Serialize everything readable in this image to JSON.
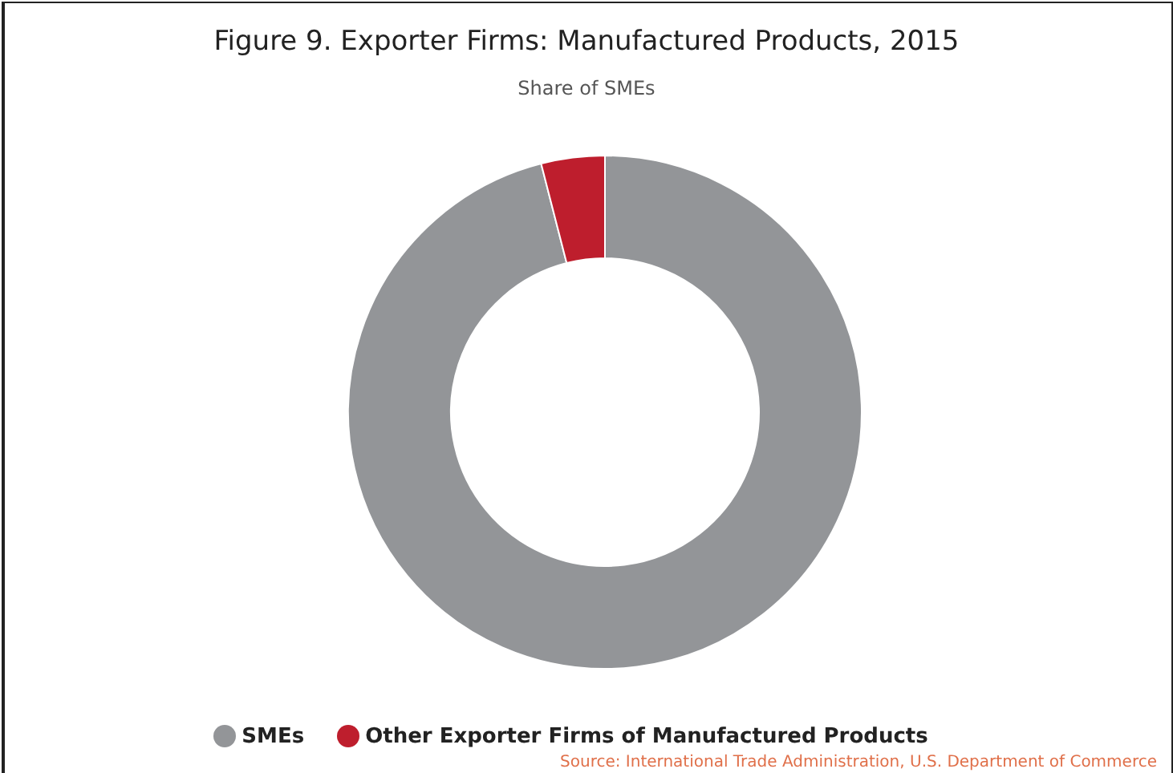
{
  "chart_data": {
    "type": "donut",
    "title": "Figure 9. Exporter Firms: Manufactured Products, 2015",
    "subtitle": "Share of SMEs",
    "categories": [
      "SMEs",
      "Other Exporter Firms of Manufactured Products"
    ],
    "values": [
      96,
      4
    ],
    "colors": [
      "#939598",
      "#be1e2d"
    ],
    "legend": "bottom",
    "annotations": [
      "Source: International Trade Administration, U.S. Department of Commerce"
    ]
  }
}
